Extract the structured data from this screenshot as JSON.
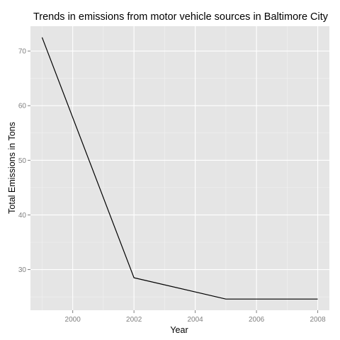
{
  "chart_data": {
    "type": "line",
    "title": "Trends in emissions from motor vehicle sources in Baltimore City",
    "xlabel": "Year",
    "ylabel": "Total Emissions in Tons",
    "x": [
      1999,
      2002,
      2005,
      2008
    ],
    "series": [
      {
        "values": [
          72.5,
          28.5,
          24.6,
          24.6
        ],
        "color": "#000000"
      }
    ],
    "xlim": [
      1998.62,
      2008.38
    ],
    "ylim": [
      22.55,
      74.55
    ],
    "xticks": [
      2000,
      2002,
      2004,
      2006,
      2008
    ],
    "xtick_labels": [
      "2000",
      "2002",
      "2004",
      "2006",
      "2008"
    ],
    "yticks": [
      30,
      40,
      50,
      60,
      70
    ],
    "ytick_labels": [
      "30",
      "40",
      "50",
      "60",
      "70"
    ],
    "grid": true,
    "panel_background": "#e5e5e5",
    "gridline_color": "#ffffff",
    "minor_gridline_color": "#f2f2f2"
  }
}
